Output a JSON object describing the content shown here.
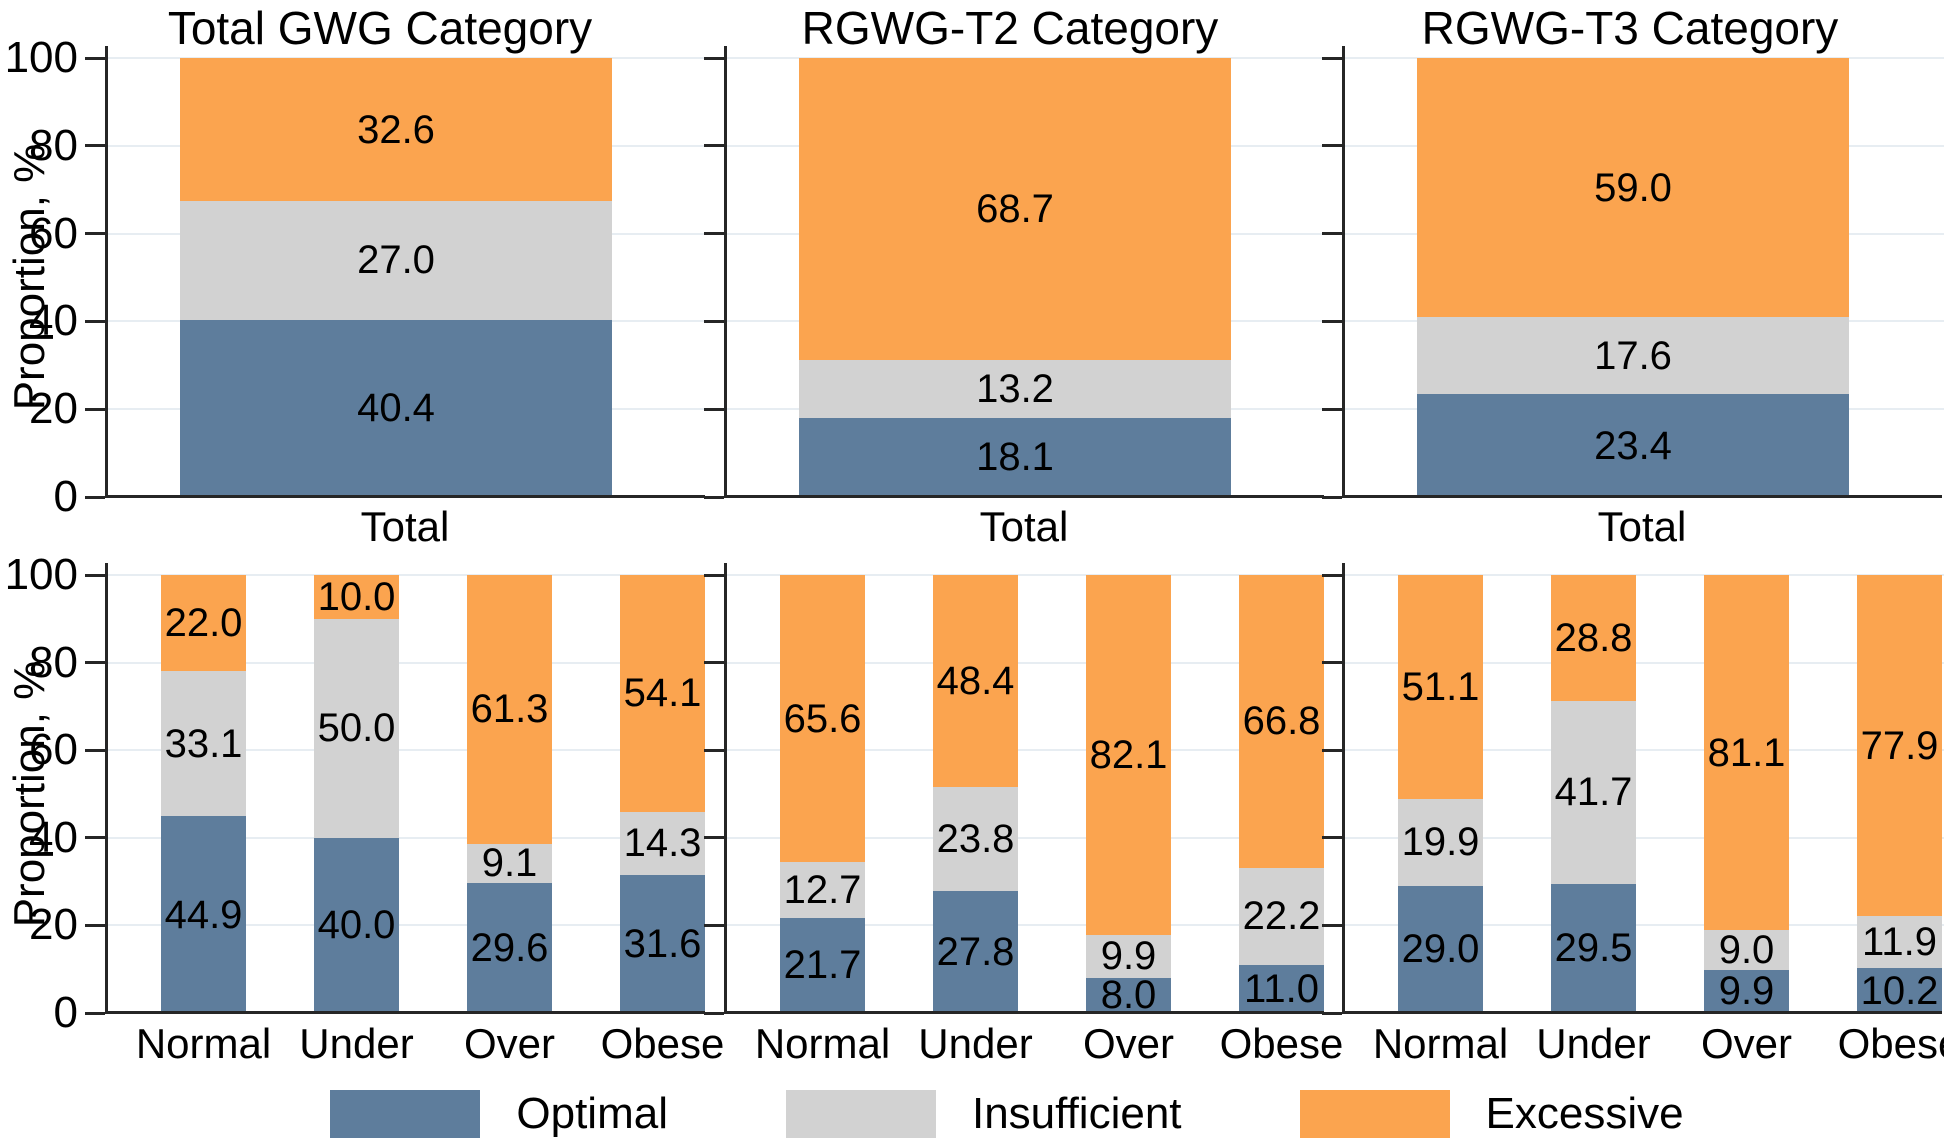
{
  "figure": {
    "ylabel": "Proportion, %",
    "yticks": [
      0,
      20,
      40,
      60,
      80,
      100
    ],
    "background": "#ffffff",
    "gridline_color": "#e7edf2",
    "axis_color": "#262626",
    "legend": [
      {
        "label": "Optimal",
        "color": "#5e7d9c"
      },
      {
        "label": "Insufficient",
        "color": "#d2d2d2"
      },
      {
        "label": "Excessive",
        "color": "#fba44f"
      }
    ]
  },
  "chart_data": [
    {
      "type": "bar",
      "stacked": true,
      "row": "top",
      "title": "Total GWG Category",
      "ylabel": "Proportion, %",
      "ylim": [
        0,
        100
      ],
      "grid": true,
      "categories": [
        "Total"
      ],
      "series": [
        {
          "name": "Optimal",
          "values": [
            40.4
          ]
        },
        {
          "name": "Insufficient",
          "values": [
            27.0
          ]
        },
        {
          "name": "Excessive",
          "values": [
            32.6
          ]
        }
      ]
    },
    {
      "type": "bar",
      "stacked": true,
      "row": "top",
      "title": "RGWG-T2 Category",
      "ylim": [
        0,
        100
      ],
      "grid": true,
      "categories": [
        "Total"
      ],
      "series": [
        {
          "name": "Optimal",
          "values": [
            18.1
          ]
        },
        {
          "name": "Insufficient",
          "values": [
            13.2
          ]
        },
        {
          "name": "Excessive",
          "values": [
            68.7
          ]
        }
      ]
    },
    {
      "type": "bar",
      "stacked": true,
      "row": "top",
      "title": "RGWG-T3 Category",
      "ylim": [
        0,
        100
      ],
      "grid": true,
      "categories": [
        "Total"
      ],
      "series": [
        {
          "name": "Optimal",
          "values": [
            23.4
          ]
        },
        {
          "name": "Insufficient",
          "values": [
            17.6
          ]
        },
        {
          "name": "Excessive",
          "values": [
            59.0
          ]
        }
      ]
    },
    {
      "type": "bar",
      "stacked": true,
      "row": "bottom",
      "title": "",
      "ylabel": "Proportion, %",
      "ylim": [
        0,
        100
      ],
      "grid": true,
      "categories": [
        "Normal",
        "Under",
        "Over",
        "Obese"
      ],
      "series": [
        {
          "name": "Optimal",
          "values": [
            44.9,
            40.0,
            29.6,
            31.6
          ]
        },
        {
          "name": "Insufficient",
          "values": [
            33.1,
            50.0,
            9.1,
            14.3
          ]
        },
        {
          "name": "Excessive",
          "values": [
            22.0,
            10.0,
            61.3,
            54.1
          ]
        }
      ]
    },
    {
      "type": "bar",
      "stacked": true,
      "row": "bottom",
      "title": "",
      "ylim": [
        0,
        100
      ],
      "grid": true,
      "categories": [
        "Normal",
        "Under",
        "Over",
        "Obese"
      ],
      "series": [
        {
          "name": "Optimal",
          "values": [
            21.7,
            27.8,
            8.0,
            11.0
          ]
        },
        {
          "name": "Insufficient",
          "values": [
            12.7,
            23.8,
            9.9,
            22.2
          ]
        },
        {
          "name": "Excessive",
          "values": [
            65.6,
            48.4,
            82.1,
            66.8
          ]
        }
      ]
    },
    {
      "type": "bar",
      "stacked": true,
      "row": "bottom",
      "title": "",
      "ylim": [
        0,
        100
      ],
      "grid": true,
      "categories": [
        "Normal",
        "Under",
        "Over",
        "Obese"
      ],
      "series": [
        {
          "name": "Optimal",
          "values": [
            29.0,
            29.5,
            9.9,
            10.2
          ]
        },
        {
          "name": "Insufficient",
          "values": [
            19.9,
            41.7,
            9.0,
            11.9
          ]
        },
        {
          "name": "Excessive",
          "values": [
            51.1,
            28.8,
            81.1,
            77.9
          ]
        }
      ]
    }
  ]
}
